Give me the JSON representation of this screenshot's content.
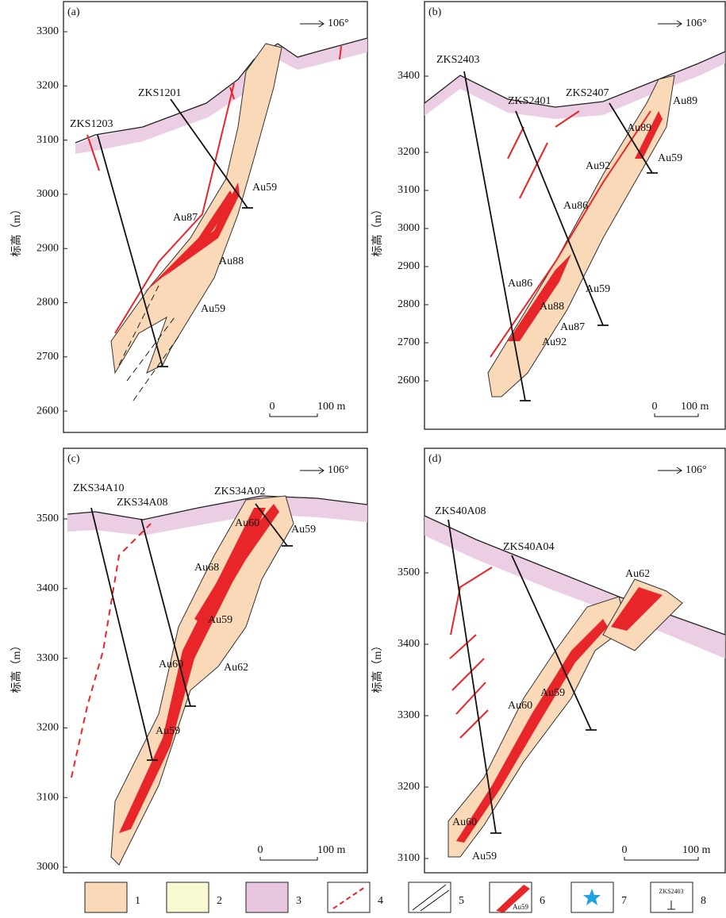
{
  "y_axis_label": "标高（m）",
  "north_arrow": "106°",
  "panels": [
    {
      "label": "(a)",
      "yticks": [
        3300,
        3200,
        3100,
        3000,
        2900,
        2800,
        2700,
        2600
      ],
      "drillholes": [
        "ZKS1203",
        "ZKS1201"
      ],
      "orebodies": [
        "Au59",
        "Au87",
        "Au88",
        "Au59"
      ],
      "scale": [
        "0",
        "100 m"
      ]
    },
    {
      "label": "(b)",
      "yticks": [
        3400,
        3200,
        3100,
        3000,
        2900,
        2800,
        2700,
        2600
      ],
      "drillholes": [
        "ZKS2403",
        "ZKS2401",
        "ZKS2407"
      ],
      "orebodies": [
        "Au89",
        "Au89",
        "Au59",
        "Au92",
        "Au86",
        "Au86",
        "Au59",
        "Au88",
        "Au87",
        "Au92"
      ],
      "scale": [
        "0",
        "100 m"
      ]
    },
    {
      "label": "(c)",
      "yticks": [
        3500,
        3400,
        3300,
        3200,
        3100,
        3000
      ],
      "drillholes": [
        "ZKS34A10",
        "ZKS34A08",
        "ZKS34A02"
      ],
      "orebodies": [
        "Au60",
        "Au59",
        "Au68",
        "Au59",
        "Au62",
        "Au60",
        "Au59"
      ],
      "scale": [
        "0",
        "100 m"
      ]
    },
    {
      "label": "(d)",
      "yticks": [
        3500,
        3400,
        3300,
        3200,
        3100
      ],
      "drillholes": [
        "ZKS40A08",
        "ZKS40A04"
      ],
      "orebodies": [
        "Au62",
        "Au59",
        "Au60",
        "Au60",
        "Au59"
      ],
      "scale": [
        "0",
        "100 m"
      ]
    }
  ],
  "legend": [
    "1",
    "2",
    "3",
    "4",
    "5",
    "6",
    "7",
    "8"
  ],
  "legend_samples": {
    "orebody": "Au59",
    "drillhole": "ZKS2403"
  }
}
